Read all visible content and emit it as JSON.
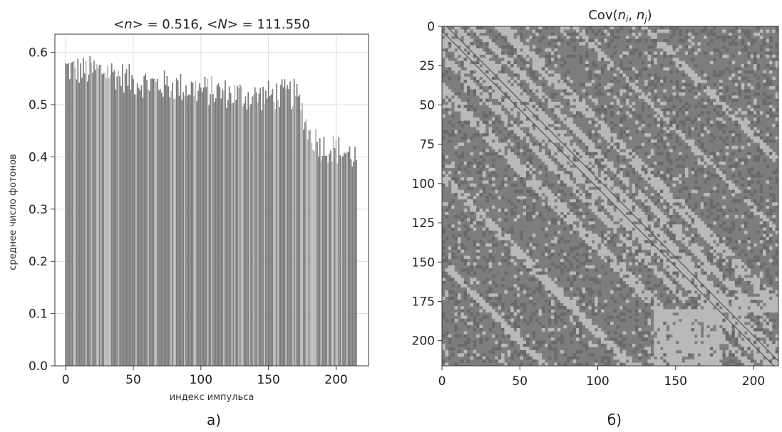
{
  "chart_data": [
    {
      "type": "bar",
      "panel_label": "а)",
      "title_parts": {
        "p1": "<",
        "v1": "n",
        "p2": "> = 0.516, <",
        "v2": "N",
        "p3": "> = 111.550"
      },
      "xlabel": "индекс импульса",
      "ylabel": "среднее число фотонов",
      "xlim": [
        -8,
        224
      ],
      "ylim": [
        0,
        0.635
      ],
      "xticks": [
        0,
        50,
        100,
        150,
        200
      ],
      "xtick_labels": [
        "0",
        "50",
        "100",
        "150",
        "200"
      ],
      "yticks": [
        0.0,
        0.1,
        0.2,
        0.3,
        0.4,
        0.5,
        0.6
      ],
      "ytick_labels": [
        "0.0",
        "0.1",
        "0.2",
        "0.3",
        "0.4",
        "0.5",
        "0.6"
      ],
      "grid": true,
      "bar_count": 216,
      "bar_color": "#7c7c7c",
      "bar_highlight_color": "#b8b8b8",
      "profile": {
        "x": [
          0,
          10,
          30,
          50,
          80,
          110,
          140,
          160,
          170,
          175,
          180,
          190,
          200,
          210,
          215
        ],
        "mean_value": [
          0.57,
          0.565,
          0.565,
          0.545,
          0.535,
          0.525,
          0.515,
          0.52,
          0.52,
          0.49,
          0.445,
          0.42,
          0.415,
          0.405,
          0.4
        ],
        "fluctuation": 0.03
      }
    },
    {
      "type": "heatmap",
      "panel_label": "б)",
      "title_parts": {
        "p1": "Cov(",
        "v1": "n",
        "s1": "i",
        "p2": ", ",
        "v2": "n",
        "s2": "j",
        "p3": ")"
      },
      "xlim": [
        0,
        216
      ],
      "ylim": [
        0,
        216
      ],
      "y_inverted": true,
      "xticks": [
        0,
        50,
        100,
        150,
        200
      ],
      "xtick_labels": [
        "0",
        "50",
        "100",
        "150",
        "200"
      ],
      "yticks": [
        0,
        25,
        50,
        75,
        100,
        125,
        150,
        175,
        200
      ],
      "ytick_labels": [
        "0",
        "25",
        "50",
        "75",
        "100",
        "125",
        "150",
        "175",
        "200"
      ],
      "grid": false,
      "matrix_size": 216,
      "colors": {
        "background": "#7d7d7d",
        "light": "#b9b9b9",
        "dark": "#6a6a6a",
        "diagonal": "#555555"
      }
    }
  ]
}
